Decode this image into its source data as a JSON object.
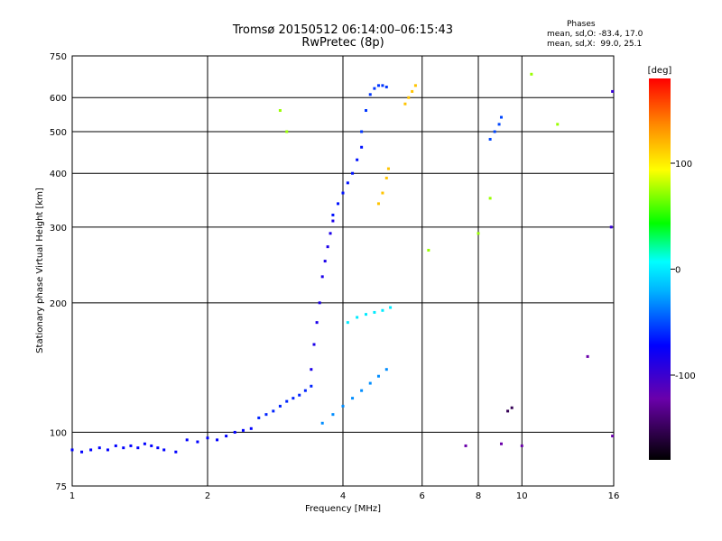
{
  "chart_data": {
    "type": "scatter",
    "title": "Tromsø 20150512 06:14:00–06:15:43",
    "subtitle": "RwPretec (8p)",
    "stats": {
      "title": "Phases",
      "o_line": "mean, sd,O: -83.4, 17.0",
      "x_line": "mean, sd,X:  99.0, 25.1"
    },
    "xlabel": "Frequency [MHz]",
    "ylabel": "Stationary phase Virtual Height [km]",
    "xscale": "log",
    "yscale": "log",
    "xlim": [
      1,
      16
    ],
    "ylim": [
      75,
      750
    ],
    "xticks": [
      1,
      2,
      4,
      6,
      8,
      10,
      16
    ],
    "yticks": [
      75,
      100,
      200,
      300,
      400,
      500,
      600,
      750
    ],
    "grid": true,
    "colorbar": {
      "label": "[deg]",
      "range": [
        -180,
        180
      ],
      "ticks": [
        100,
        0,
        -100
      ]
    },
    "series": [
      {
        "x": [
          1.0,
          1.05,
          1.1,
          1.15,
          1.2,
          1.25,
          1.3,
          1.35,
          1.4,
          1.45,
          1.5,
          1.55,
          1.6,
          1.7
        ],
        "y": [
          91,
          90,
          91,
          92,
          91,
          93,
          92,
          93,
          92,
          94,
          93,
          92,
          91,
          90
        ],
        "phase": [
          -100
        ]
      },
      {
        "x": [
          1.8,
          1.9,
          2.0,
          2.1,
          2.2,
          2.3,
          2.4,
          2.5
        ],
        "y": [
          96,
          95,
          97,
          96,
          98,
          100,
          101,
          102
        ],
        "phase": [
          -100
        ]
      },
      {
        "x": [
          2.6,
          2.7,
          2.8,
          2.9,
          3.0,
          3.1,
          3.2,
          3.3,
          3.4
        ],
        "y": [
          108,
          110,
          112,
          115,
          118,
          120,
          122,
          125,
          128
        ],
        "phase": [
          -90
        ]
      },
      {
        "x": [
          3.4,
          3.45,
          3.5,
          3.55,
          3.6,
          3.65,
          3.7,
          3.75,
          3.8
        ],
        "y": [
          140,
          160,
          180,
          200,
          230,
          250,
          270,
          290,
          310
        ],
        "phase": [
          -110
        ]
      },
      {
        "x": [
          3.8,
          3.9,
          4.0,
          4.1,
          4.2,
          4.3,
          4.4
        ],
        "y": [
          320,
          340,
          360,
          380,
          400,
          430,
          460
        ],
        "phase": [
          -95
        ]
      },
      {
        "x": [
          4.4,
          4.5,
          4.6,
          4.7,
          4.8,
          4.9,
          5.0
        ],
        "y": [
          500,
          560,
          610,
          630,
          640,
          640,
          635
        ],
        "phase": [
          -85
        ]
      },
      {
        "x": [
          4.8,
          4.9,
          5.0,
          5.05
        ],
        "y": [
          340,
          360,
          390,
          410
        ],
        "phase": [
          120
        ]
      },
      {
        "x": [
          5.5,
          5.6,
          5.7,
          5.8
        ],
        "y": [
          580,
          600,
          620,
          640
        ],
        "phase": [
          120
        ]
      },
      {
        "x": [
          4.1,
          4.3,
          4.5,
          4.7,
          4.9,
          5.1
        ],
        "y": [
          180,
          185,
          188,
          190,
          192,
          195
        ],
        "phase": [
          -20
        ]
      },
      {
        "x": [
          3.6,
          3.8,
          4.0,
          4.2,
          4.4,
          4.6,
          4.8,
          5.0
        ],
        "y": [
          105,
          110,
          115,
          120,
          125,
          130,
          135,
          140
        ],
        "phase": [
          -60
        ]
      },
      {
        "x": [
          8.5,
          8.7,
          8.9,
          9.0
        ],
        "y": [
          480,
          500,
          520,
          540
        ],
        "phase": [
          -80
        ]
      },
      {
        "x": [
          9.3,
          9.5
        ],
        "y": [
          112,
          114
        ],
        "phase": [
          -160
        ]
      },
      {
        "x": [
          15.8,
          15.9
        ],
        "y": [
          300,
          620
        ],
        "phase": [
          -120
        ]
      },
      {
        "x": [
          2.9,
          3.0,
          6.2,
          8.0,
          8.5,
          10.5,
          12.0
        ],
        "y": [
          560,
          500,
          265,
          290,
          350,
          680,
          520
        ],
        "phase": [
          60
        ]
      },
      {
        "x": [
          7.5,
          9.0,
          10.0,
          14.0,
          15.9
        ],
        "y": [
          93,
          94,
          93,
          150,
          98
        ],
        "phase": [
          -140
        ]
      }
    ]
  }
}
